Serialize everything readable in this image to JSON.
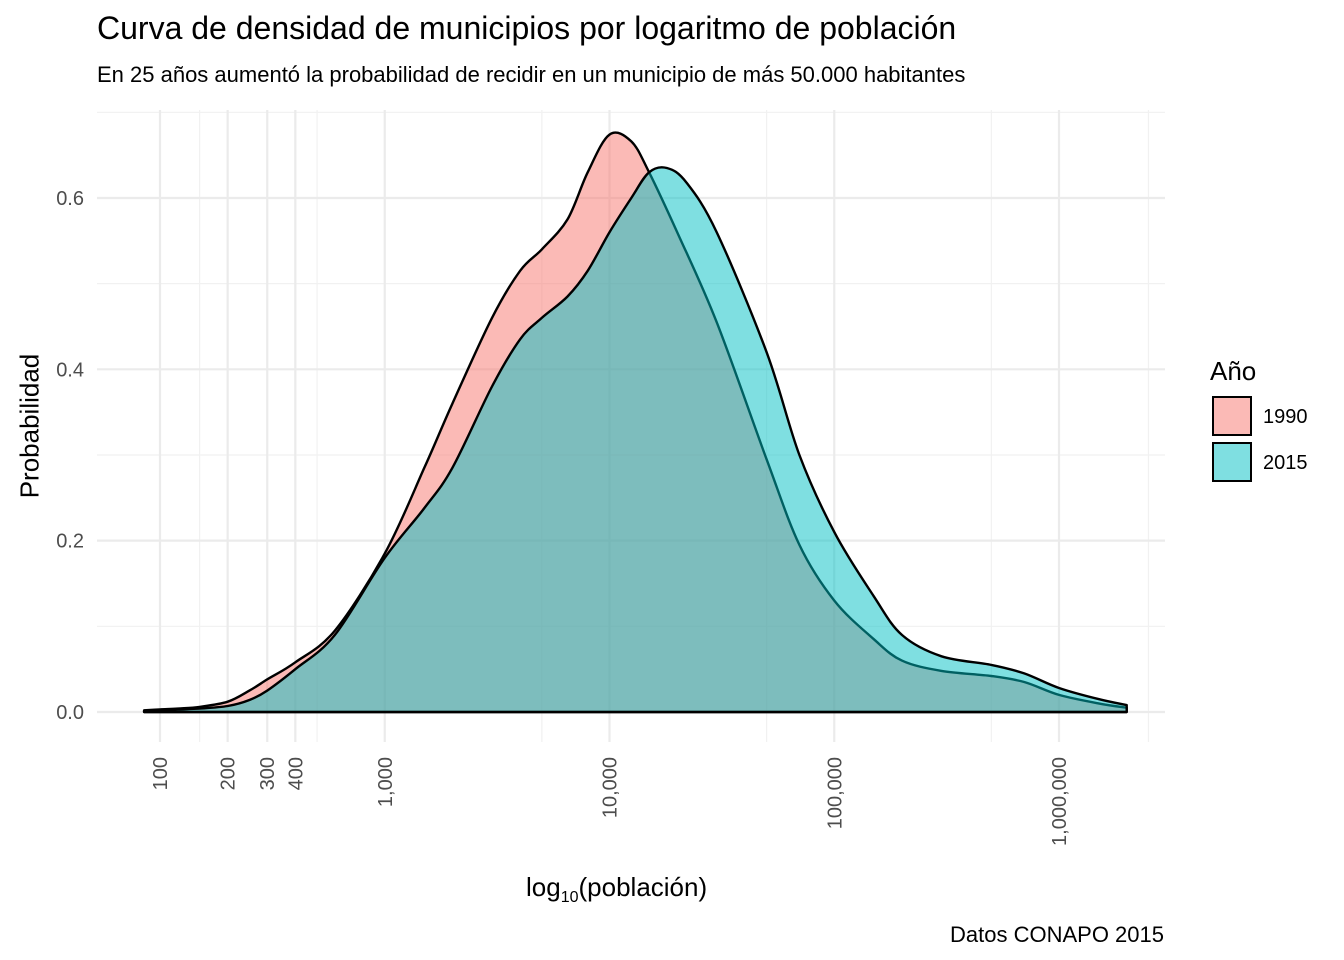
{
  "chart_data": {
    "type": "area",
    "title": "Curva de densidad de municipios por logaritmo de población",
    "subtitle": "En 25 años aumentó la probabilidad de recidir en un municipio de más 50.000 habitantes",
    "caption": "Datos CONAPO 2015",
    "xlabel": {
      "main": "log",
      "sub": "10",
      "rest": "(población)"
    },
    "ylabel": "Probabilidad",
    "x_scale": "log10",
    "xlim": [
      70,
      2500000
    ],
    "ylim": [
      0,
      0.7
    ],
    "x_ticks": [
      {
        "value": 100,
        "label": "100"
      },
      {
        "value": 200,
        "label": "200"
      },
      {
        "value": 300,
        "label": "300"
      },
      {
        "value": 400,
        "label": "400"
      },
      {
        "value": 1000,
        "label": "1,000"
      },
      {
        "value": 10000,
        "label": "10,000"
      },
      {
        "value": 100000,
        "label": "100,000"
      },
      {
        "value": 1000000,
        "label": "1,000,000"
      }
    ],
    "y_ticks": [
      {
        "value": 0,
        "label": "0.0"
      },
      {
        "value": 0.2,
        "label": "0.2"
      },
      {
        "value": 0.4,
        "label": "0.4"
      },
      {
        "value": 0.6,
        "label": "0.6"
      }
    ],
    "grid": true,
    "legend": {
      "title": "Año",
      "position": "right"
    },
    "series": [
      {
        "name": "1990",
        "color": "#F8766D",
        "x": [
          85,
          100,
          120,
          150,
          200,
          250,
          300,
          400,
          600,
          1000,
          1500,
          2000,
          3000,
          4000,
          5000,
          6500,
          8000,
          10000,
          12500,
          15000,
          20000,
          30000,
          50000,
          70000,
          100000,
          150000,
          200000,
          300000,
          500000,
          700000,
          1000000,
          1500000,
          2000000
        ],
        "values": [
          0.002,
          0.003,
          0.004,
          0.006,
          0.012,
          0.025,
          0.038,
          0.058,
          0.095,
          0.185,
          0.285,
          0.36,
          0.46,
          0.515,
          0.54,
          0.575,
          0.63,
          0.674,
          0.666,
          0.63,
          0.56,
          0.455,
          0.295,
          0.195,
          0.13,
          0.085,
          0.06,
          0.048,
          0.042,
          0.035,
          0.02,
          0.01,
          0.005
        ]
      },
      {
        "name": "2015",
        "color": "#00BFC4",
        "x": [
          85,
          100,
          120,
          150,
          200,
          250,
          300,
          400,
          600,
          1000,
          1500,
          2000,
          3000,
          4000,
          5000,
          6500,
          8000,
          10000,
          12500,
          15000,
          18000,
          22000,
          30000,
          50000,
          70000,
          100000,
          150000,
          200000,
          300000,
          500000,
          700000,
          1000000,
          1500000,
          2000000
        ],
        "values": [
          0.001,
          0.002,
          0.003,
          0.004,
          0.007,
          0.014,
          0.025,
          0.05,
          0.09,
          0.18,
          0.238,
          0.285,
          0.38,
          0.435,
          0.46,
          0.485,
          0.515,
          0.56,
          0.6,
          0.63,
          0.635,
          0.618,
          0.56,
          0.42,
          0.3,
          0.21,
          0.135,
          0.09,
          0.065,
          0.055,
          0.045,
          0.028,
          0.015,
          0.008
        ]
      }
    ]
  }
}
